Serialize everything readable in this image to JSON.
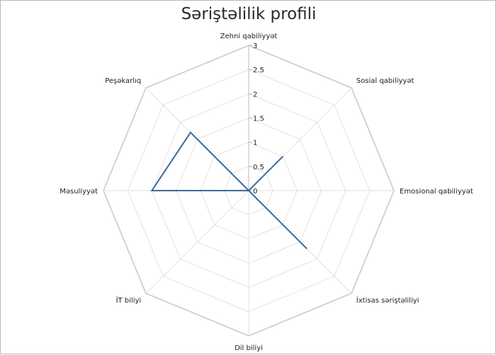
{
  "chart_data": {
    "type": "radar",
    "title": "Səriştəlilik profili",
    "categories": [
      "Zehni qabiliyyət",
      "Sosial qabiliyyət",
      "Emosional qabiliyyət",
      "İxtisas səriştəliliyi",
      "Dil biliyi",
      "İT biliyi",
      "Məsuliyyət",
      "Peşəkarlıq"
    ],
    "series": [
      {
        "values": [
          0,
          1,
          0,
          1.7,
          0,
          0,
          2,
          1.7
        ]
      }
    ],
    "rlim": [
      0,
      3
    ],
    "ticks": [
      "0",
      "0.5",
      "1",
      "1.5",
      "2",
      "2.5",
      "3"
    ],
    "grid": true,
    "legend": "none",
    "colors": {
      "series": "#3c6a97",
      "outer_grid": "#c8c8c8",
      "inner_grid": "#e2e2e2"
    }
  }
}
